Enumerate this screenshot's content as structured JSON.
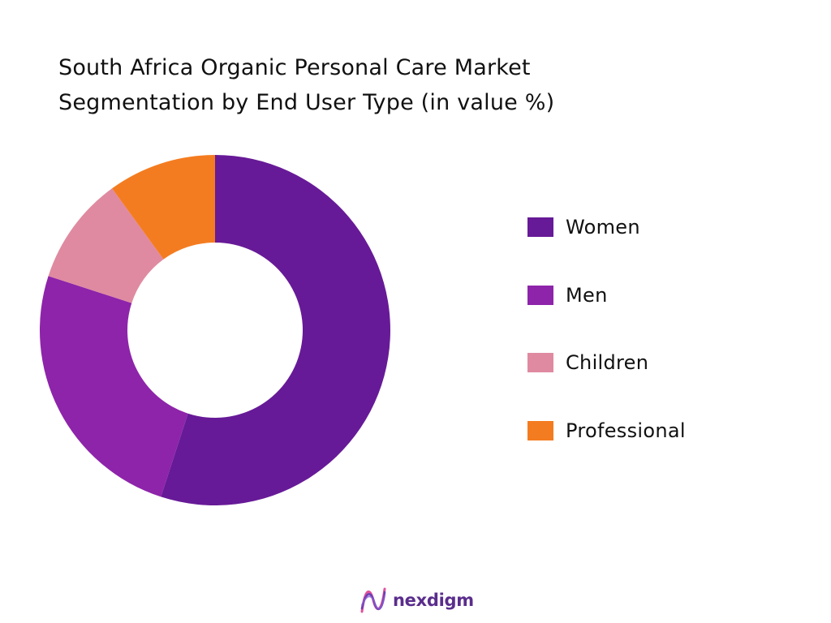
{
  "chart_data": {
    "type": "pie",
    "title_lines": [
      "South Africa Organic Personal Care Market",
      "Segmentation by End User Type (in value %)"
    ],
    "categories": [
      "Women",
      "Men",
      "Children",
      "Professional"
    ],
    "values": [
      55,
      25,
      10,
      10
    ],
    "colors": [
      "#671a97",
      "#8e24aa",
      "#df8aa0",
      "#f47c20"
    ],
    "donut": true,
    "legend_position": "right"
  },
  "brand": {
    "name": "nexdigm",
    "color": "#5a2d8c",
    "icon": "nexdigm-wave-logo"
  }
}
